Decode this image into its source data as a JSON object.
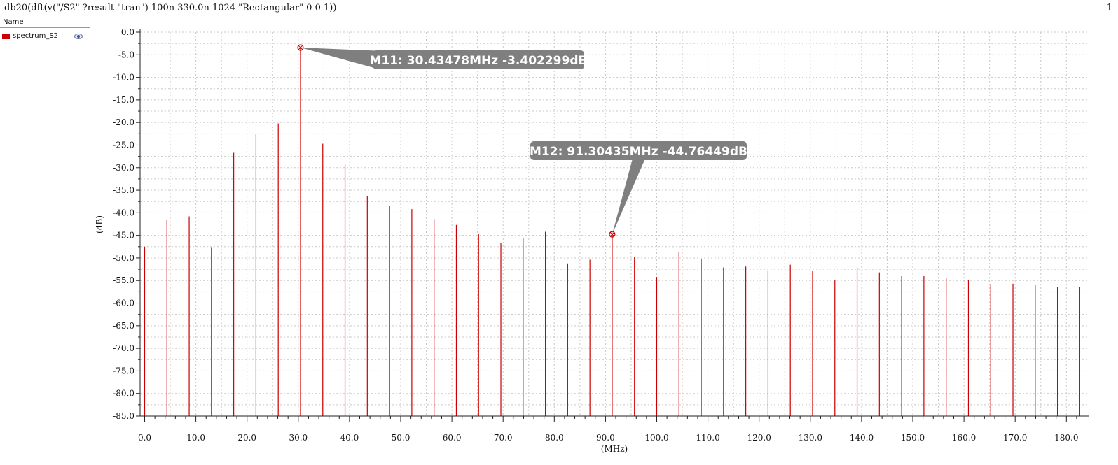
{
  "header": {
    "expression": "db20(dft(v(\"/S2\" ?result \"tran\")  100n 330.0n 1024 \"Rectangular\" 0 0 1))",
    "page_number": "1"
  },
  "legend": {
    "heading": "Name",
    "entries": [
      {
        "name": "spectrum_S2",
        "color": "#cc0000",
        "icon": "eye-icon"
      }
    ]
  },
  "chart_data": {
    "type": "bar",
    "xlabel": "(MHz)",
    "ylabel": "(dB)",
    "xlim": [
      0,
      183
    ],
    "ylim": [
      -85,
      0
    ],
    "grid": true,
    "line_color": "#cc0000",
    "x_ticks": [
      "0.0",
      "10.0",
      "20.0",
      "30.0",
      "40.0",
      "50.0",
      "60.0",
      "70.0",
      "80.0",
      "90.0",
      "100.0",
      "110.0",
      "120.0",
      "130.0",
      "140.0",
      "150.0",
      "160.0",
      "170.0",
      "180.0"
    ],
    "y_ticks": [
      "0.0",
      "-5.0",
      "-10.0",
      "-15.0",
      "-20.0",
      "-25.0",
      "-30.0",
      "-35.0",
      "-40.0",
      "-45.0",
      "-50.0",
      "-55.0",
      "-60.0",
      "-65.0",
      "-70.0",
      "-75.0",
      "-80.0",
      "-85.0"
    ],
    "series": [
      {
        "name": "spectrum_S2",
        "x": [
          0,
          4.348,
          8.696,
          13.043,
          17.391,
          21.739,
          26.087,
          30.435,
          34.783,
          39.13,
          43.478,
          47.826,
          52.174,
          56.522,
          60.87,
          65.217,
          69.565,
          73.913,
          78.261,
          82.609,
          86.957,
          91.304,
          95.652,
          100.0,
          104.348,
          108.696,
          113.043,
          117.391,
          121.739,
          126.087,
          130.435,
          134.783,
          139.13,
          143.478,
          147.826,
          152.174,
          156.522,
          160.87,
          165.217,
          169.565,
          173.913,
          178.261,
          182.609
        ],
        "values": [
          -47.5,
          -41.5,
          -40.8,
          -47.6,
          -26.7,
          -22.5,
          -20.2,
          -3.4,
          -24.7,
          -29.3,
          -36.3,
          -38.5,
          -39.2,
          -41.4,
          -42.7,
          -44.6,
          -46.6,
          -45.7,
          -44.2,
          -51.2,
          -50.4,
          -44.76,
          -49.8,
          -54.2,
          -48.7,
          -50.3,
          -52.1,
          -51.9,
          -52.9,
          -51.5,
          -52.9,
          -54.8,
          -52.1,
          -53.2,
          -54.0,
          -54.0,
          -54.5,
          -54.9,
          -55.8,
          -55.7,
          -55.9,
          -56.5,
          -56.5
        ]
      }
    ],
    "markers": [
      {
        "label": "M11: 30.43478MHz -3.402299dB",
        "x": 30.435,
        "y": -3.402299
      },
      {
        "label": "M12: 91.30435MHz -44.76449dB",
        "x": 91.304,
        "y": -44.76449
      }
    ]
  }
}
